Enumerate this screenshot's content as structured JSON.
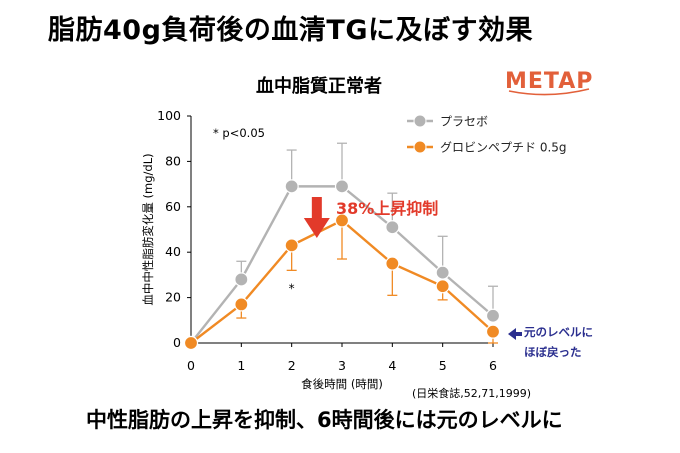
{
  "title": "脂肪40g負荷後の血清TGに及ぼす効果",
  "subtitle": "血中脂質正常者",
  "logo_text": "METAP",
  "footer": "中性脂肪の上昇を抑制、6時間後には元のレベルに",
  "colors": {
    "placebo": "#b3b3b3",
    "globin": "#f08a24",
    "arrow": "#e23a2a",
    "callout": "#2b2f8f"
  },
  "chart_data": {
    "type": "line",
    "title": "血中脂質正常者",
    "xlabel": "食後時間 (時間)",
    "ylabel": "血中中性脂肪変化量 (mg/dL)",
    "x": [
      0,
      1,
      2,
      3,
      4,
      5,
      6
    ],
    "xlim": [
      0,
      6
    ],
    "ylim": [
      0,
      100
    ],
    "yticks": [
      0,
      20,
      40,
      60,
      80,
      100
    ],
    "legend_position": "top-right",
    "series": [
      {
        "name": "プラセボ",
        "values": [
          0,
          28,
          69,
          69,
          51,
          31,
          12
        ],
        "error_upper": [
          0,
          36,
          85,
          88,
          66,
          47,
          25
        ]
      },
      {
        "name": "グロビンペプチド 0.5g",
        "values": [
          0,
          17,
          43,
          54,
          35,
          25,
          5
        ],
        "error_lower": [
          0,
          11,
          32,
          37,
          21,
          19,
          0
        ]
      }
    ],
    "annotations": {
      "significance_note": "* p<0.05",
      "significance_mark": "*",
      "significance_at_x": 2,
      "reduction_label": "38%上昇抑制",
      "return_label_line1": "元のレベルに",
      "return_label_line2": "ほぼ戻った",
      "citation": "(日栄食誌,52,71,1999)"
    }
  }
}
